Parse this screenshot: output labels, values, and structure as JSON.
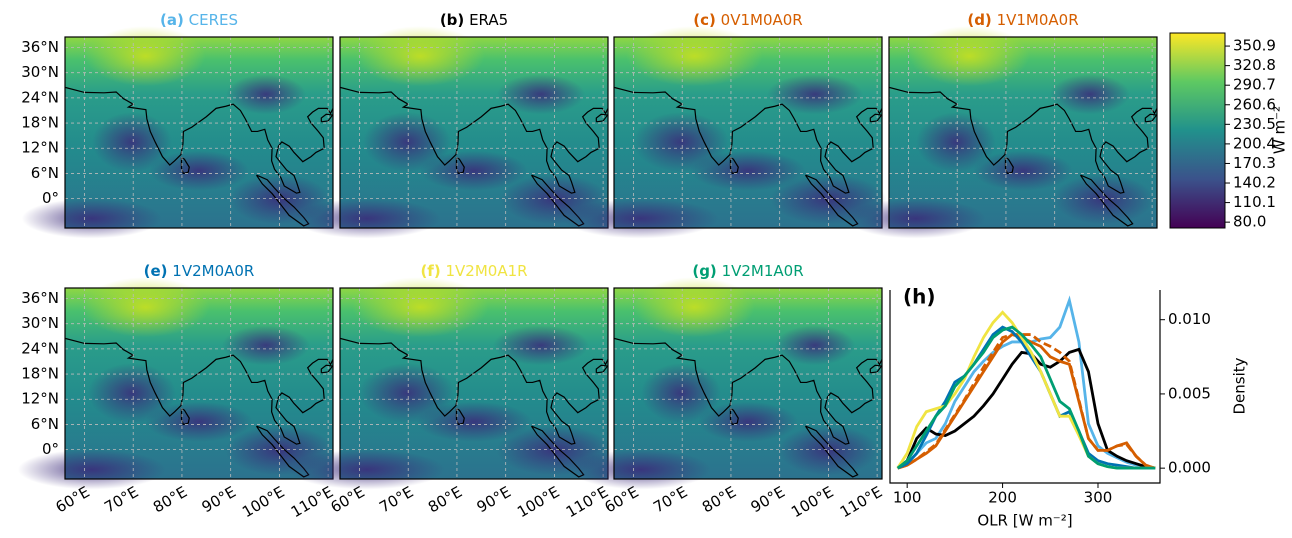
{
  "maps": {
    "latlim": [
      -7,
      38.5
    ],
    "lonlim": [
      56,
      111
    ],
    "grid": true,
    "lat_ticks": [
      {
        "value": 0,
        "label": "0°"
      },
      {
        "value": 6,
        "label": "6°N"
      },
      {
        "value": 12,
        "label": "12°N"
      },
      {
        "value": 18,
        "label": "18°N"
      },
      {
        "value": 24,
        "label": "24°N"
      },
      {
        "value": 30,
        "label": "30°N"
      },
      {
        "value": 36,
        "label": "36°N"
      }
    ],
    "lon_ticks": [
      {
        "value": 60,
        "label": "60°E"
      },
      {
        "value": 70,
        "label": "70°E"
      },
      {
        "value": 80,
        "label": "80°E"
      },
      {
        "value": 90,
        "label": "90°E"
      },
      {
        "value": 100,
        "label": "100°E"
      },
      {
        "value": 110,
        "label": "110°E"
      }
    ],
    "panels": [
      {
        "label": "(a)",
        "name": "CERES",
        "color": "#56b4e9"
      },
      {
        "label": "(b)",
        "name": "ERA5",
        "color": "#000000"
      },
      {
        "label": "(c)",
        "name": "0V1M0A0R",
        "color": "#d55e00"
      },
      {
        "label": "(d)",
        "name": "1V1M0A0R",
        "color": "#d55e00"
      },
      {
        "label": "(e)",
        "name": "1V2M0A0R",
        "color": "#0072b2"
      },
      {
        "label": "(f)",
        "name": "1V2M0A1R",
        "color": "#f0e442"
      },
      {
        "label": "(g)",
        "name": "1V2M1A0R",
        "color": "#009e73"
      }
    ]
  },
  "colorbar": {
    "label": "W m⁻²",
    "lim": [
      71,
      371
    ],
    "ticks": [
      {
        "value": 80,
        "label": "80.0"
      },
      110.1,
      140.2,
      170.3,
      200.4,
      230.5,
      260.6,
      290.7,
      320.8,
      350.9
    ]
  },
  "chart_data": {
    "type": "line",
    "title": "(h)",
    "xlabel": "OLR [W m⁻²]",
    "ylabel": "Density",
    "x": [
      90,
      100,
      110,
      120,
      130,
      140,
      150,
      160,
      170,
      180,
      190,
      200,
      210,
      220,
      230,
      240,
      250,
      260,
      270,
      280,
      290,
      300,
      310,
      320,
      330,
      340,
      350,
      360
    ],
    "xlim": [
      82,
      365
    ],
    "xticks": [
      100,
      200,
      300
    ],
    "ylim": [
      -0.001,
      0.012
    ],
    "yticks": [
      {
        "value": 0,
        "label": "0.000"
      },
      0.005,
      {
        "value": 0.01,
        "label": "0.010"
      }
    ],
    "series": [
      {
        "color": "#56b4e9",
        "values": [
          0,
          0.0003,
          0.001,
          0.0017,
          0.002,
          0.003,
          0.0045,
          0.0055,
          0.0065,
          0.0072,
          0.0078,
          0.0082,
          0.0085,
          0.0085,
          0.0085,
          0.0087,
          0.0088,
          0.0095,
          0.0113,
          0.0085,
          0.003,
          0.0015,
          0.001,
          0.0007,
          0.0004,
          0.0002,
          0.0001,
          0
        ]
      },
      {
        "color": "#000000",
        "values": [
          0,
          0.0005,
          0.002,
          0.0027,
          0.0023,
          0.0022,
          0.0025,
          0.003,
          0.0035,
          0.0042,
          0.005,
          0.006,
          0.007,
          0.0078,
          0.0077,
          0.007,
          0.0068,
          0.0072,
          0.0078,
          0.008,
          0.0065,
          0.003,
          0.0012,
          0.0008,
          0.0005,
          0.0003,
          0.0001,
          0
        ]
      },
      {
        "color": "#d55e00",
        "values": [
          0,
          0.0002,
          0.0006,
          0.001,
          0.0015,
          0.0025,
          0.0035,
          0.0045,
          0.0055,
          0.0065,
          0.0075,
          0.0085,
          0.009,
          0.0088,
          0.0085,
          0.0082,
          0.0075,
          0.0072,
          0.007,
          0.0045,
          0.002,
          0.0012,
          0.0012,
          0.0015,
          0.0017,
          0.0008,
          0.0002,
          0
        ]
      },
      {
        "color": "#d55e00",
        "dash": true,
        "values": [
          0,
          0.0002,
          0.0006,
          0.0011,
          0.0016,
          0.0026,
          0.0036,
          0.0046,
          0.0057,
          0.0068,
          0.0078,
          0.0088,
          0.009,
          0.009,
          0.009,
          0.0085,
          0.0082,
          0.0078,
          0.0072,
          0.0046,
          0.002,
          0.0012,
          0.0012,
          0.0015,
          0.0016,
          0.0008,
          0.0002,
          0
        ]
      },
      {
        "color": "#0072b2",
        "values": [
          0,
          0.0003,
          0.001,
          0.0022,
          0.0035,
          0.0045,
          0.0058,
          0.0062,
          0.007,
          0.008,
          0.009,
          0.0095,
          0.0092,
          0.0085,
          0.0075,
          0.0065,
          0.005,
          0.0035,
          0.0038,
          0.0025,
          0.001,
          0.0005,
          0.0003,
          0.0002,
          0.0001,
          0,
          0,
          0
        ]
      },
      {
        "color": "#f0e442",
        "values": [
          0,
          0.001,
          0.0028,
          0.0038,
          0.004,
          0.0042,
          0.005,
          0.006,
          0.0075,
          0.0088,
          0.0098,
          0.0105,
          0.0098,
          0.0088,
          0.0078,
          0.0065,
          0.005,
          0.0035,
          0.0035,
          0.0022,
          0.0008,
          0.0003,
          0.0001,
          0,
          0,
          0,
          0,
          0
        ]
      },
      {
        "color": "#009e73",
        "values": [
          0,
          0.0005,
          0.0015,
          0.0025,
          0.0035,
          0.0042,
          0.0055,
          0.0062,
          0.007,
          0.0078,
          0.0088,
          0.0093,
          0.0095,
          0.009,
          0.0083,
          0.0075,
          0.006,
          0.0045,
          0.004,
          0.0025,
          0.0008,
          0.0003,
          0.0001,
          0,
          0,
          0,
          0,
          0
        ]
      }
    ]
  }
}
